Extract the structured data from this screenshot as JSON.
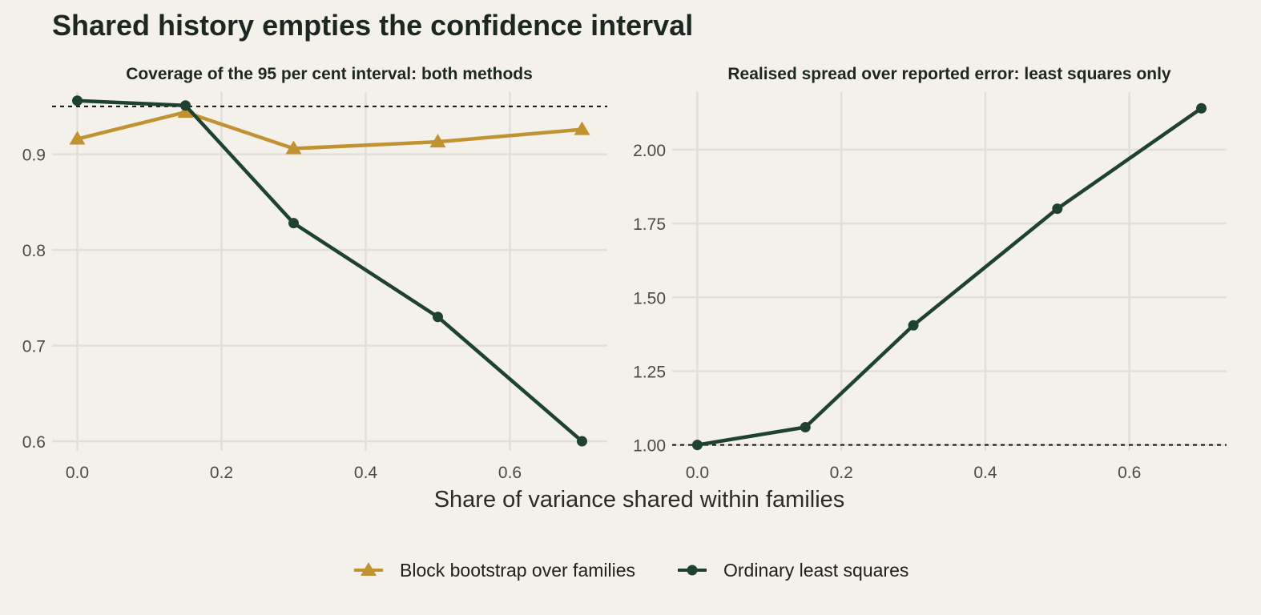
{
  "title": "Shared history empties the confidence interval",
  "xlabel": "Share of variance shared within families",
  "colors": {
    "bootstrap": "#c09232",
    "ols": "#1f4230",
    "background": "#f3f1ea"
  },
  "legend": {
    "position": "bottom",
    "items": [
      {
        "key": "bootstrap",
        "label": "Block bootstrap over families",
        "marker": "triangle"
      },
      {
        "key": "ols",
        "label": "Ordinary least squares",
        "marker": "circle"
      }
    ]
  },
  "chart_data": [
    {
      "type": "line",
      "title": "Coverage of the 95 per cent interval: both methods",
      "xlabel": "Share of variance shared within families",
      "ylabel": "",
      "xlim": [
        -0.035,
        0.735
      ],
      "ylim": [
        0.59,
        0.965
      ],
      "xticks": [
        0.0,
        0.2,
        0.4,
        0.6
      ],
      "xtick_labels": [
        "0.0",
        "0.2",
        "0.4",
        "0.6"
      ],
      "yticks": [
        0.6,
        0.7,
        0.8,
        0.9
      ],
      "ytick_labels": [
        "0.6",
        "0.7",
        "0.8",
        "0.9"
      ],
      "reference_line": {
        "y": 0.95,
        "style": "dotted"
      },
      "grid": true,
      "series": [
        {
          "name": "Block bootstrap over families",
          "key": "bootstrap",
          "marker": "triangle",
          "x": [
            0.0,
            0.15,
            0.3,
            0.5,
            0.7
          ],
          "y": [
            0.916,
            0.944,
            0.906,
            0.913,
            0.926
          ]
        },
        {
          "name": "Ordinary least squares",
          "key": "ols",
          "marker": "circle",
          "x": [
            0.0,
            0.15,
            0.3,
            0.5,
            0.7
          ],
          "y": [
            0.956,
            0.951,
            0.828,
            0.73,
            0.6
          ]
        }
      ]
    },
    {
      "type": "line",
      "title": "Realised spread over reported error: least squares only",
      "xlabel": "Share of variance shared within families",
      "ylabel": "",
      "xlim": [
        -0.035,
        0.735
      ],
      "ylim": [
        0.98,
        2.195
      ],
      "xticks": [
        0.0,
        0.2,
        0.4,
        0.6
      ],
      "xtick_labels": [
        "0.0",
        "0.2",
        "0.4",
        "0.6"
      ],
      "yticks": [
        1.0,
        1.25,
        1.5,
        1.75,
        2.0
      ],
      "ytick_labels": [
        "1.00",
        "1.25",
        "1.50",
        "1.75",
        "2.00"
      ],
      "reference_line": {
        "y": 1.0,
        "style": "dotted"
      },
      "grid": true,
      "series": [
        {
          "name": "Ordinary least squares",
          "key": "ols",
          "marker": "circle",
          "x": [
            0.0,
            0.15,
            0.3,
            0.5,
            0.7
          ],
          "y": [
            1.0,
            1.06,
            1.405,
            1.8,
            2.14
          ]
        }
      ]
    }
  ]
}
